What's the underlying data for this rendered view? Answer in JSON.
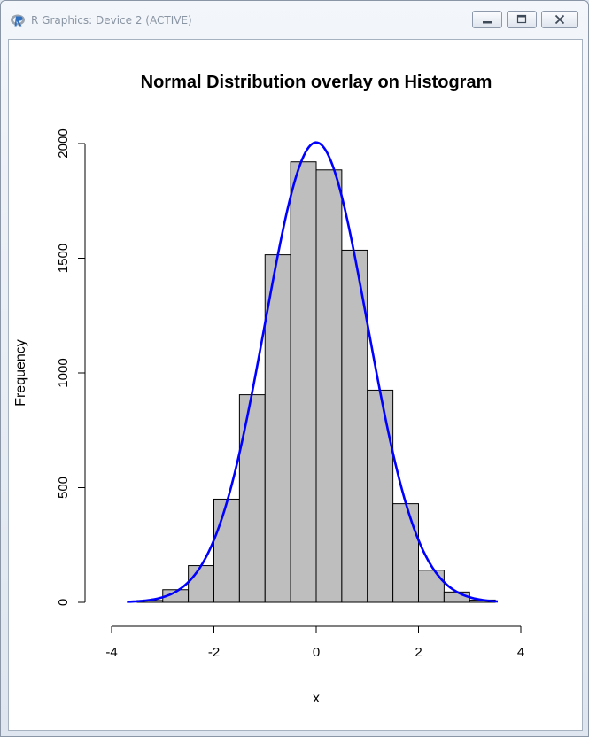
{
  "window": {
    "title": "R Graphics: Device 2 (ACTIVE)",
    "icon": "r-logo-icon",
    "buttons": {
      "minimize": "minimize-icon",
      "maximize": "maximize-icon",
      "close": "close-icon"
    }
  },
  "chart_data": {
    "type": "bar",
    "title": "Normal Distribution overlay on Histogram",
    "xlabel": "x",
    "ylabel": "Frequency",
    "xlim": [
      -4,
      4
    ],
    "ylim": [
      0,
      2000
    ],
    "x_ticks": [
      "-4",
      "-2",
      "0",
      "2",
      "4"
    ],
    "y_ticks": [
      "0",
      "500",
      "1000",
      "1500",
      "2000"
    ],
    "bin_width": 0.5,
    "bins": [
      {
        "x0": -3.5,
        "x1": -3.0,
        "count": 8
      },
      {
        "x0": -3.0,
        "x1": -2.5,
        "count": 55
      },
      {
        "x0": -2.5,
        "x1": -2.0,
        "count": 160
      },
      {
        "x0": -2.0,
        "x1": -1.5,
        "count": 450
      },
      {
        "x0": -1.5,
        "x1": -1.0,
        "count": 905
      },
      {
        "x0": -1.0,
        "x1": -0.5,
        "count": 1515
      },
      {
        "x0": -0.5,
        "x1": 0.0,
        "count": 1920
      },
      {
        "x0": 0.0,
        "x1": 0.5,
        "count": 1885
      },
      {
        "x0": 0.5,
        "x1": 1.0,
        "count": 1535
      },
      {
        "x0": 1.0,
        "x1": 1.5,
        "count": 925
      },
      {
        "x0": 1.5,
        "x1": 2.0,
        "count": 430
      },
      {
        "x0": 2.0,
        "x1": 2.5,
        "count": 140
      },
      {
        "x0": 2.5,
        "x1": 3.0,
        "count": 45
      },
      {
        "x0": 3.0,
        "x1": 3.5,
        "count": 10
      }
    ],
    "bar_fill": "#bebebe",
    "bar_stroke": "#000000",
    "overlay_curve": {
      "distribution": "normal",
      "mean": 0,
      "sd": 1,
      "peak": 2005,
      "x_range": [
        -3.7,
        3.55
      ],
      "color": "#0000ff"
    },
    "grid": false,
    "legend": "none"
  }
}
